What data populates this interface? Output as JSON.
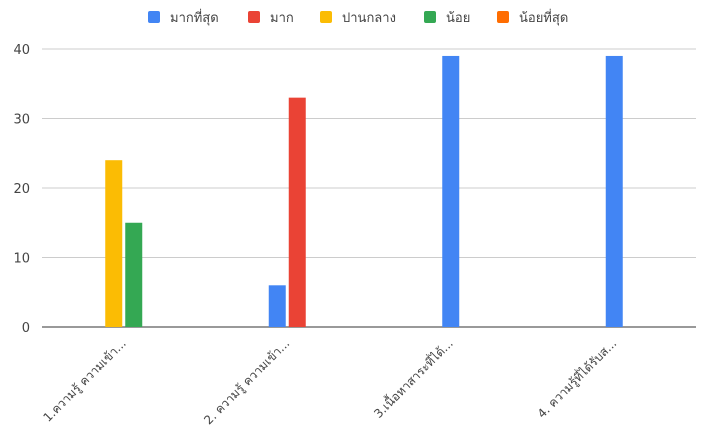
{
  "chart_data": {
    "type": "bar",
    "title": "",
    "xlabel": "",
    "ylabel": "",
    "ylim": [
      0,
      40
    ],
    "yticks": [
      0,
      10,
      20,
      30,
      40
    ],
    "grid": true,
    "legend_position": "top",
    "categories": [
      "1.ความรู้ ความเข้า...",
      "2. ความรู้ ความเข้า...",
      "3.เนื้อหาสาระที่ได้...",
      "4. ความรู้ที่ได้รับส..."
    ],
    "series": [
      {
        "name": "มากที่สุด",
        "color": "#4285f4",
        "values": [
          0,
          6,
          39,
          39
        ]
      },
      {
        "name": "มาก",
        "color": "#ea4335",
        "values": [
          0,
          33,
          0,
          0
        ]
      },
      {
        "name": "ปานกลาง",
        "color": "#fbbc04",
        "values": [
          24,
          0,
          0,
          0
        ]
      },
      {
        "name": "น้อย",
        "color": "#34a853",
        "values": [
          15,
          0,
          0,
          0
        ]
      },
      {
        "name": "น้อยที่สุด",
        "color": "#ff6d01",
        "values": [
          0,
          0,
          0,
          0
        ]
      }
    ]
  }
}
